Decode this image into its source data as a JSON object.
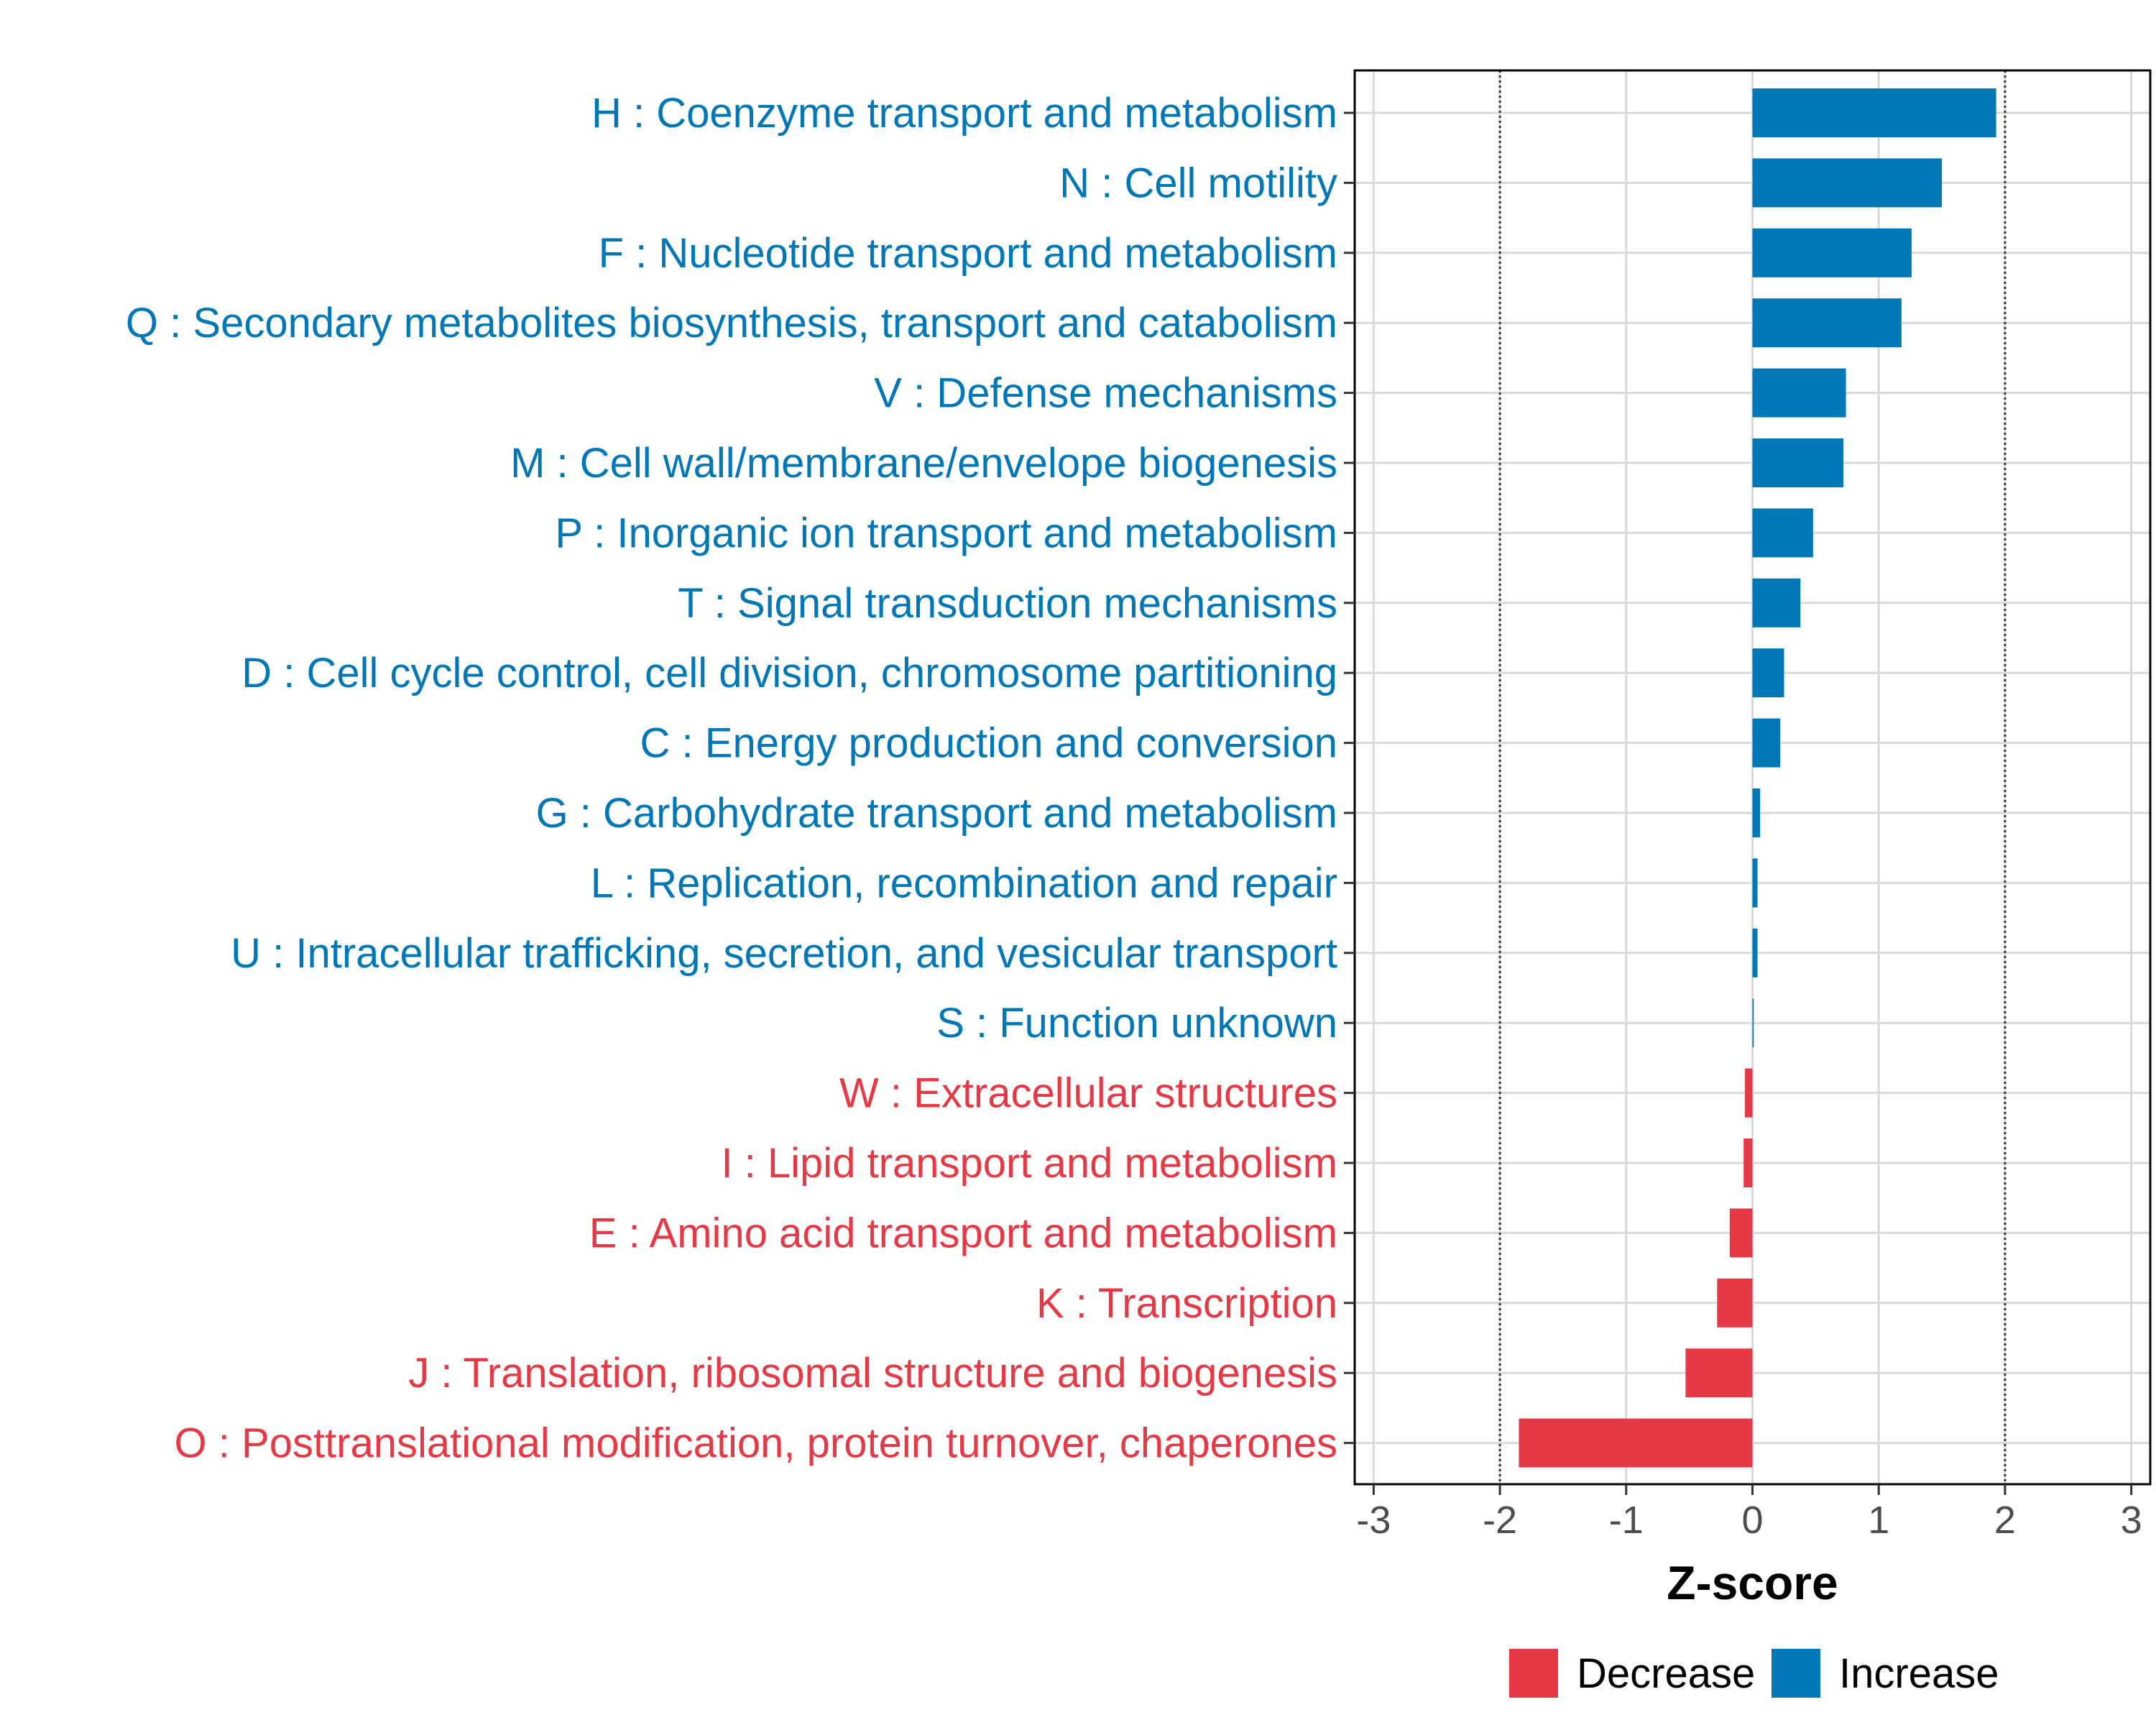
{
  "chart_data": {
    "type": "bar",
    "orientation": "horizontal",
    "xlabel": "Z-score",
    "xlim": [
      -3.15,
      3.15
    ],
    "xticks": [
      "-3",
      "-2",
      "-1",
      "0",
      "1",
      "2",
      "3"
    ],
    "xtick_values": [
      -3,
      -2,
      -1,
      0,
      1,
      2,
      3
    ],
    "threshold_lines": [
      -2,
      2
    ],
    "colors": {
      "Decrease": "#E63946",
      "Increase": "#0077B6"
    },
    "legend": [
      {
        "label": "Decrease",
        "color": "#E63946"
      },
      {
        "label": "Increase",
        "color": "#0077B6"
      }
    ],
    "legend_position": "bottom",
    "categories": [
      {
        "label": "H : Coenzyme transport and metabolism",
        "value": 1.93,
        "direction": "Increase"
      },
      {
        "label": "N : Cell motility",
        "value": 1.5,
        "direction": "Increase"
      },
      {
        "label": "F : Nucleotide transport and metabolism",
        "value": 1.26,
        "direction": "Increase"
      },
      {
        "label": "Q : Secondary metabolites biosynthesis, transport and catabolism",
        "value": 1.18,
        "direction": "Increase"
      },
      {
        "label": "V : Defense mechanisms",
        "value": 0.74,
        "direction": "Increase"
      },
      {
        "label": "M : Cell wall/membrane/envelope biogenesis",
        "value": 0.72,
        "direction": "Increase"
      },
      {
        "label": "P : Inorganic ion transport and metabolism",
        "value": 0.48,
        "direction": "Increase"
      },
      {
        "label": "T : Signal transduction mechanisms",
        "value": 0.38,
        "direction": "Increase"
      },
      {
        "label": "D : Cell cycle control, cell division, chromosome partitioning",
        "value": 0.25,
        "direction": "Increase"
      },
      {
        "label": "C : Energy production and conversion",
        "value": 0.22,
        "direction": "Increase"
      },
      {
        "label": "G : Carbohydrate transport and metabolism",
        "value": 0.06,
        "direction": "Increase"
      },
      {
        "label": "L : Replication, recombination and repair",
        "value": 0.04,
        "direction": "Increase"
      },
      {
        "label": "U : Intracellular trafficking, secretion, and vesicular transport",
        "value": 0.04,
        "direction": "Increase"
      },
      {
        "label": "S : Function unknown",
        "value": 0.01,
        "direction": "Increase"
      },
      {
        "label": "W : Extracellular structures",
        "value": -0.06,
        "direction": "Decrease"
      },
      {
        "label": "I : Lipid transport and metabolism",
        "value": -0.07,
        "direction": "Decrease"
      },
      {
        "label": "E : Amino acid transport and metabolism",
        "value": -0.18,
        "direction": "Decrease"
      },
      {
        "label": "K : Transcription",
        "value": -0.28,
        "direction": "Decrease"
      },
      {
        "label": "J : Translation, ribosomal structure and biogenesis",
        "value": -0.53,
        "direction": "Decrease"
      },
      {
        "label": "O : Posttranslational modification, protein turnover, chaperones",
        "value": -1.85,
        "direction": "Decrease"
      }
    ]
  }
}
